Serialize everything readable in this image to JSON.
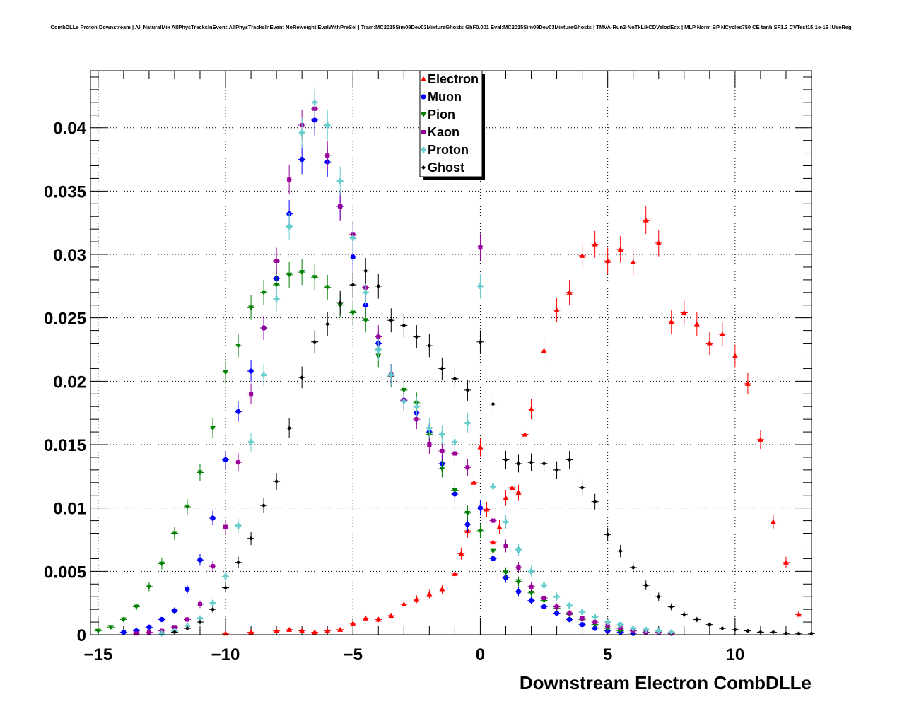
{
  "title": "CombDLLe Proton Downstream | All NaturalMix AllPhysTracksInEvent:AllPhysTracksInEvent NoReweight EvalWithPreSel | Train:MC2015Sim09Dev03MixtureGhosts GhF0.001 Eval:MC2015Sim09Dev03MixtureGhosts | TMVA-Run2-NoTkLikCDVelodEdx | MLP Norm BP NCycles750 CE tanh SF1.3 CVTest15:1e-16 !UseReg",
  "chart_data": {
    "type": "scatter",
    "title": "CombDLLe Proton Downstream | All NaturalMix AllPhysTracksInEvent:AllPhysTracksInEvent NoReweight EvalWithPreSel | Train:MC2015Sim09Dev03MixtureGhosts GhF0.001 Eval:MC2015Sim09Dev03MixtureGhosts | TMVA-Run2-NoTkLikCDVelodEdx | MLP Norm BP NCycles750 CE tanh SF1.3 CVTest15:1e-16 !UseReg",
    "xlabel": "Downstream Electron CombDLLe",
    "ylabel": "",
    "xlim": [
      -15.3,
      13
    ],
    "ylim": [
      0,
      0.0445
    ],
    "xticks": [
      -15,
      -10,
      -5,
      0,
      5,
      10
    ],
    "xtick_labels": [
      "−15",
      "−10",
      "−5",
      "0",
      "5",
      "10"
    ],
    "yticks": [
      0,
      0.005,
      0.01,
      0.015,
      0.02,
      0.025,
      0.03,
      0.035,
      0.04
    ],
    "ytick_labels": [
      "0",
      "0.005",
      "0.01",
      "0.015",
      "0.02",
      "0.025",
      "0.03",
      "0.035",
      "0.04"
    ],
    "grid": true,
    "legend_position": "top-center",
    "series": [
      {
        "name": "Electron",
        "color": "#ff0000",
        "marker": "triangle-up",
        "x": [
          -10,
          -9,
          -8,
          -7.5,
          -7,
          -6.5,
          -6,
          -5.5,
          -5,
          -4.5,
          -4,
          -3.5,
          -3,
          -2.5,
          -2,
          -1.5,
          -1,
          -0.75,
          -0.5,
          -0.25,
          0,
          0.25,
          0.5,
          0.75,
          1,
          1.25,
          1.5,
          1.75,
          2,
          2.5,
          3,
          3.5,
          4,
          4.5,
          5,
          5.5,
          6,
          6.5,
          7,
          7.5,
          8,
          8.5,
          9,
          9.5,
          10,
          10.5,
          11,
          11.5,
          12,
          12.5
        ],
        "y": [
          0.0001,
          0.0002,
          0.0003,
          0.0004,
          0.0003,
          0.0002,
          0.0003,
          0.0004,
          0.0009,
          0.0013,
          0.0012,
          0.0015,
          0.0024,
          0.0028,
          0.0032,
          0.0036,
          0.0048,
          0.0064,
          0.0082,
          0.012,
          0.0148,
          0.0099,
          0.0073,
          0.0085,
          0.0108,
          0.0116,
          0.0112,
          0.0158,
          0.0178,
          0.0224,
          0.0256,
          0.027,
          0.0299,
          0.0308,
          0.0295,
          0.0304,
          0.0294,
          0.0327,
          0.0309,
          0.0247,
          0.0254,
          0.0245,
          0.023,
          0.0237,
          0.022,
          0.0198,
          0.0154,
          0.0089,
          0.0057,
          0.0016
        ]
      },
      {
        "name": "Muon",
        "color": "#0000ff",
        "marker": "circle",
        "x": [
          -14,
          -13.5,
          -13,
          -12.5,
          -12,
          -11.5,
          -11,
          -10.5,
          -10,
          -9.5,
          -9,
          -8.5,
          -8,
          -7.5,
          -7,
          -6.5,
          -6,
          -5.5,
          -5,
          -4.5,
          -4,
          -3.5,
          -3,
          -2.5,
          -2,
          -1.5,
          -1,
          -0.5,
          0,
          0.5,
          1,
          1.5,
          2,
          2.5,
          3,
          3.5,
          4,
          4.5,
          5,
          5.5,
          6
        ],
        "y": [
          0.0002,
          0.0003,
          0.0006,
          0.0012,
          0.0019,
          0.0036,
          0.0059,
          0.0092,
          0.0138,
          0.0176,
          0.0208,
          0.0242,
          0.0281,
          0.0332,
          0.0375,
          0.0406,
          0.0373,
          0.0338,
          0.0298,
          0.026,
          0.023,
          0.0205,
          0.0185,
          0.0175,
          0.016,
          0.0135,
          0.0111,
          0.0087,
          0.01,
          0.006,
          0.0045,
          0.0034,
          0.0027,
          0.0022,
          0.0017,
          0.0012,
          0.0008,
          0.0005,
          0.0003,
          0.0002,
          0.0001
        ]
      },
      {
        "name": "Pion",
        "color": "#008000",
        "marker": "triangle-down",
        "x": [
          -15,
          -14.5,
          -14,
          -13.5,
          -13,
          -12.5,
          -12,
          -11.5,
          -11,
          -10.5,
          -10,
          -9.5,
          -9,
          -8.5,
          -8,
          -7.5,
          -7,
          -6.5,
          -6,
          -5.5,
          -5,
          -4.5,
          -4,
          -3.5,
          -3,
          -2.5,
          -2,
          -1.5,
          -1,
          -0.5,
          0,
          0.5,
          1,
          1.5,
          2,
          2.5,
          3,
          3.5,
          4,
          4.5,
          5,
          5.5,
          6,
          6.5,
          7,
          7.5
        ],
        "y": [
          0.0003,
          0.0006,
          0.0012,
          0.0022,
          0.0038,
          0.0056,
          0.008,
          0.0101,
          0.0128,
          0.0163,
          0.0207,
          0.0228,
          0.0258,
          0.027,
          0.0276,
          0.0284,
          0.0286,
          0.0282,
          0.0274,
          0.026,
          0.0254,
          0.0248,
          0.022,
          0.0204,
          0.0193,
          0.0183,
          0.0158,
          0.0131,
          0.0114,
          0.0096,
          0.0082,
          0.0066,
          0.0049,
          0.0042,
          0.0033,
          0.0027,
          0.0021,
          0.0016,
          0.0012,
          0.0008,
          0.0005,
          0.0003,
          0.0003,
          0.0002,
          0.0002,
          0.0001
        ]
      },
      {
        "name": "Kaon",
        "color": "#990099",
        "marker": "square",
        "x": [
          -13.5,
          -13,
          -12.5,
          -12,
          -11.5,
          -11,
          -10.5,
          -10,
          -9.5,
          -9,
          -8.5,
          -8,
          -7.5,
          -7,
          -6.5,
          -6,
          -5.5,
          -5,
          -4.5,
          -4,
          -3.5,
          -3,
          -2.5,
          -2,
          -1.5,
          -1,
          -0.5,
          0,
          0.5,
          1,
          1.5,
          2,
          2.5,
          3,
          3.5,
          4,
          4.5,
          5,
          5.5,
          6,
          6.5,
          7,
          7.5
        ],
        "y": [
          0.0001,
          0.0002,
          0.0003,
          0.0006,
          0.0012,
          0.0024,
          0.0054,
          0.0085,
          0.0136,
          0.019,
          0.0242,
          0.0295,
          0.0359,
          0.0402,
          0.0415,
          0.0378,
          0.0338,
          0.0316,
          0.0274,
          0.0235,
          0.0205,
          0.0185,
          0.017,
          0.015,
          0.0145,
          0.0143,
          0.0132,
          0.0306,
          0.009,
          0.007,
          0.0053,
          0.0038,
          0.0029,
          0.0022,
          0.0017,
          0.0013,
          0.001,
          0.0007,
          0.0005,
          0.0003,
          0.0002,
          0.0002,
          0.0001
        ]
      },
      {
        "name": "Proton",
        "color": "#66cccc",
        "marker": "cross",
        "x": [
          -12.5,
          -12,
          -11.5,
          -11,
          -10.5,
          -10,
          -9.5,
          -9,
          -8.5,
          -8,
          -7.5,
          -7,
          -6.5,
          -6,
          -5.5,
          -5,
          -4.5,
          -4,
          -3.5,
          -3,
          -2.5,
          -2,
          -1.5,
          -1,
          -0.5,
          0,
          0.5,
          1,
          1.5,
          2,
          2.5,
          3,
          3.5,
          4,
          4.5,
          5,
          5.5,
          6,
          6.5,
          7,
          7.5
        ],
        "y": [
          0.0001,
          0.0003,
          0.0007,
          0.0013,
          0.0025,
          0.0046,
          0.0086,
          0.0152,
          0.0205,
          0.0265,
          0.0322,
          0.0396,
          0.042,
          0.0402,
          0.0358,
          0.0313,
          0.027,
          0.0225,
          0.0205,
          0.0184,
          0.018,
          0.0163,
          0.0158,
          0.0152,
          0.0167,
          0.0275,
          0.0117,
          0.0089,
          0.0067,
          0.005,
          0.0039,
          0.003,
          0.0023,
          0.0018,
          0.0014,
          0.001,
          0.0008,
          0.0005,
          0.0004,
          0.0003,
          0.0002
        ]
      },
      {
        "name": "Ghost",
        "color": "#000000",
        "marker": "diamond",
        "x": [
          -12,
          -11.5,
          -11,
          -10.5,
          -10,
          -9.5,
          -9,
          -8.5,
          -8,
          -7.5,
          -7,
          -6.5,
          -6,
          -5.5,
          -5,
          -4.5,
          -4,
          -3.5,
          -3,
          -2.5,
          -2,
          -1.5,
          -1,
          -0.5,
          0,
          0.5,
          1,
          1.5,
          2,
          2.5,
          3,
          3.5,
          4,
          4.5,
          5,
          5.5,
          6,
          6.5,
          7,
          7.5,
          8,
          8.5,
          9,
          9.5,
          10,
          10.5,
          11,
          11.5,
          12,
          12.5,
          13
        ],
        "y": [
          0.0002,
          0.0005,
          0.001,
          0.002,
          0.0037,
          0.0057,
          0.0076,
          0.0102,
          0.0121,
          0.0163,
          0.0203,
          0.0231,
          0.0245,
          0.0262,
          0.0276,
          0.0287,
          0.0275,
          0.0248,
          0.0244,
          0.0235,
          0.0228,
          0.021,
          0.0202,
          0.0193,
          0.0231,
          0.0182,
          0.0138,
          0.0135,
          0.0136,
          0.0135,
          0.013,
          0.0138,
          0.0116,
          0.0105,
          0.0079,
          0.0066,
          0.0053,
          0.0039,
          0.003,
          0.0022,
          0.0016,
          0.0012,
          0.0008,
          0.0005,
          0.0004,
          0.0003,
          0.0002,
          0.0002,
          0.0001,
          0.0001,
          0.0001
        ]
      }
    ]
  }
}
